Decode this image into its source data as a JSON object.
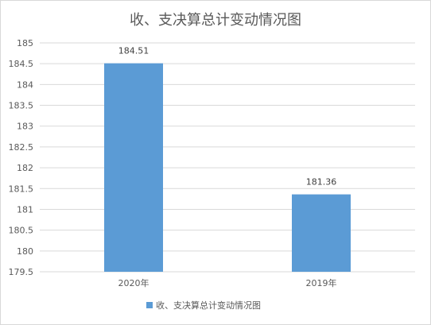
{
  "chart_data": {
    "type": "bar",
    "title": "收、支决算总计变动情况图",
    "categories": [
      "2020年",
      "2019年"
    ],
    "series": [
      {
        "name": "收、支决算总计变动情况图",
        "values": [
          184.51,
          181.36
        ],
        "labels": [
          "184.51",
          "181.36"
        ]
      }
    ],
    "ylim": [
      179.5,
      185
    ],
    "yticks": [
      "179.5",
      "180",
      "180.5",
      "181",
      "181.5",
      "182",
      "182.5",
      "183",
      "183.5",
      "184",
      "184.5",
      "185"
    ],
    "grid": true,
    "legend": "bottom",
    "colors": {
      "bar": "#5b9bd5",
      "grid": "#d9d9d9",
      "text": "#595959"
    }
  }
}
